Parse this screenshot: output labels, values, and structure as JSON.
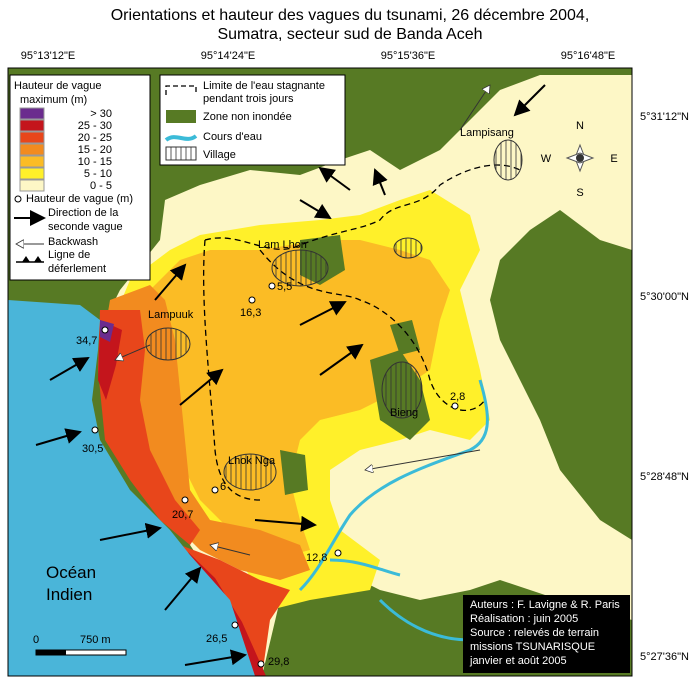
{
  "title": [
    "Orientations et hauteur des vagues du tsunami, 26 décembre 2004,",
    "Sumatra, secteur sud de Banda Aceh"
  ],
  "longitudes": [
    "95°13'12\"E",
    "95°14'24\"E",
    "95°15'36\"E",
    "95°16'48\"E"
  ],
  "latitudes": [
    "5°31'12\"N",
    "5°30'00\"N",
    "5°28'48\"N",
    "5°27'36\"N"
  ],
  "height_legend": {
    "title": [
      "Hauteur de vague",
      "maximum (m)"
    ],
    "classes": [
      {
        "label": "> 30",
        "color": "#6b2c8e"
      },
      {
        "label": "25 - 30",
        "color": "#c4151c"
      },
      {
        "label": "20 - 25",
        "color": "#e8461b"
      },
      {
        "label": "15 - 20",
        "color": "#f28b1f"
      },
      {
        "label": "10 - 15",
        "color": "#fbbc25"
      },
      {
        "label": "5 - 10",
        "color": "#fff02a"
      },
      {
        "label": "0 - 5",
        "color": "#fdf7c6"
      }
    ]
  },
  "symbol_legend": [
    "Hauteur de vague (m)",
    [
      "Direction de la",
      "seconde vague"
    ],
    "Backwash",
    [
      "Ligne de",
      "déferlement"
    ]
  ],
  "feature_legend": [
    [
      "Limite de l'eau stagnante",
      "pendant trois jours"
    ],
    "Zone non inondée",
    "Cours d'eau",
    "Village"
  ],
  "places": [
    "Lampuuk",
    "Lam Lhon",
    "Lampisang",
    "Bieng",
    "Lhok Nga"
  ],
  "wave_heights": [
    "34,7",
    "30,5",
    "20,7",
    "26,5",
    "29,8",
    "16,3",
    "5,5",
    "6",
    "12,8",
    "2,8"
  ],
  "ocean_label": [
    "Océan",
    "Indien"
  ],
  "compass": [
    "N",
    "S",
    "W",
    "E"
  ],
  "scale": [
    "0",
    "750 m"
  ],
  "credits": [
    "Auteurs : F. Lavigne & R. Paris",
    "Réalisation : juin 2005",
    "Source : relevés de terrain",
    "missions TSUNARISQUE",
    "janvier et août 2005"
  ]
}
